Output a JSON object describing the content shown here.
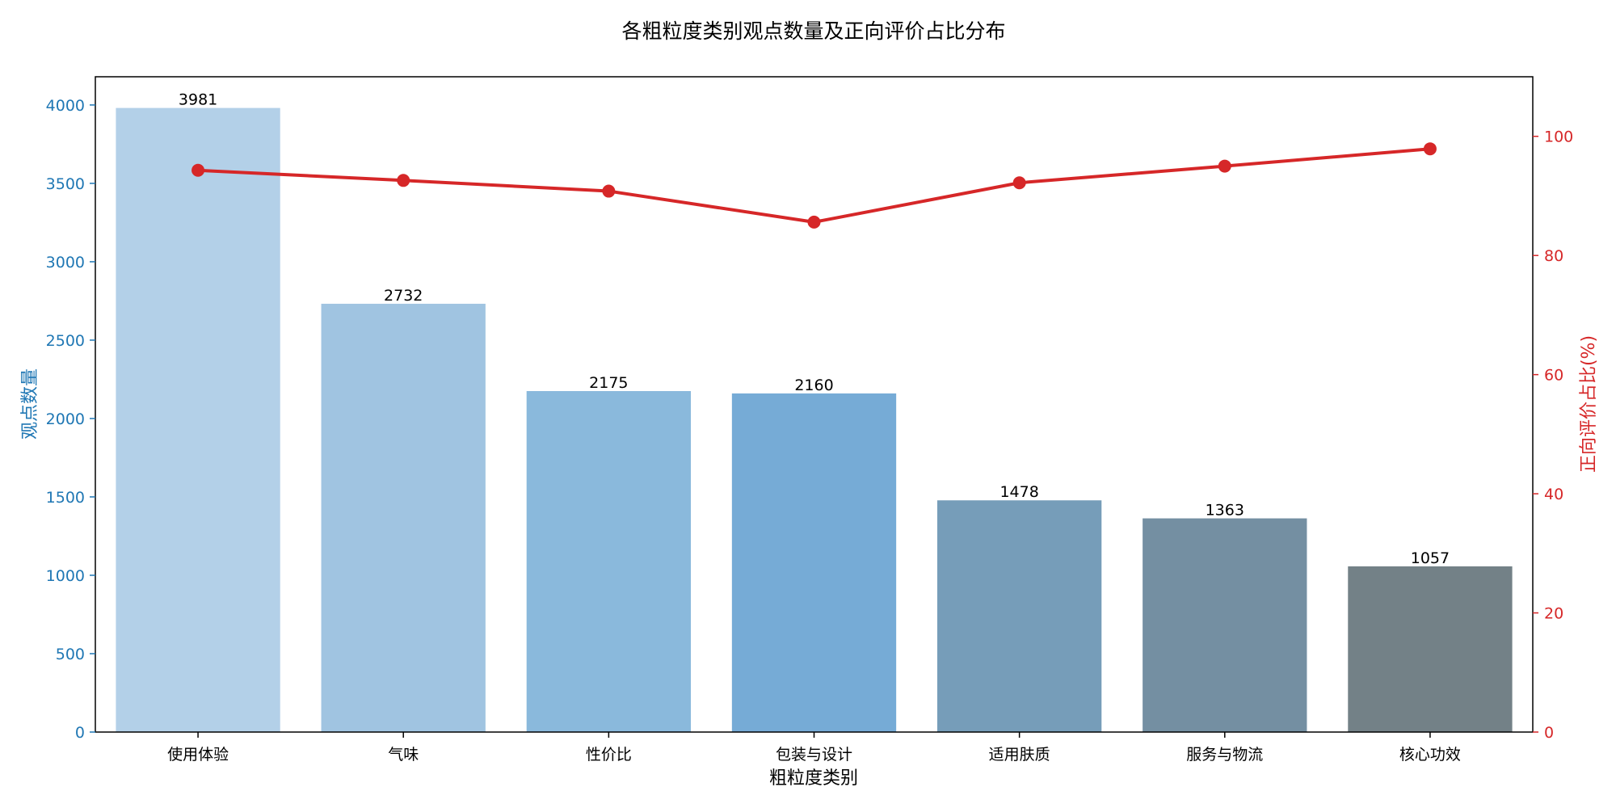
{
  "chart_data": {
    "type": "bar",
    "title": "各粗粒度类别观点数量及正向评价占比分布",
    "xlabel": "粗粒度类别",
    "ylabel": "观点数量",
    "y2label": "正向评价占比(%)",
    "categories": [
      "使用体验",
      "气味",
      "性价比",
      "包装与设计",
      "适用肤质",
      "服务与物流",
      "核心功效"
    ],
    "series": [
      {
        "type": "bar",
        "axis": "left",
        "values": [
          3981,
          2732,
          2175,
          2160,
          1478,
          1363,
          1057
        ],
        "colors": [
          "#b3d0e8",
          "#a0c4e1",
          "#8ab9dc",
          "#76abd6",
          "#769db9",
          "#748fa2",
          "#738187"
        ]
      },
      {
        "type": "line",
        "axis": "right",
        "values": [
          94.3,
          92.6,
          90.8,
          85.6,
          92.2,
          95.0,
          97.9
        ],
        "color": "#d62728"
      }
    ],
    "ylim": [
      0,
      4180
    ],
    "yticks": [
      0,
      500,
      1000,
      1500,
      2000,
      2500,
      3000,
      3500,
      4000
    ],
    "y2lim": [
      0,
      110
    ],
    "y2ticks": [
      0,
      20,
      40,
      60,
      80,
      100
    ],
    "left_axis_color": "#1f77b4",
    "right_axis_color": "#d62728",
    "grid": false
  }
}
